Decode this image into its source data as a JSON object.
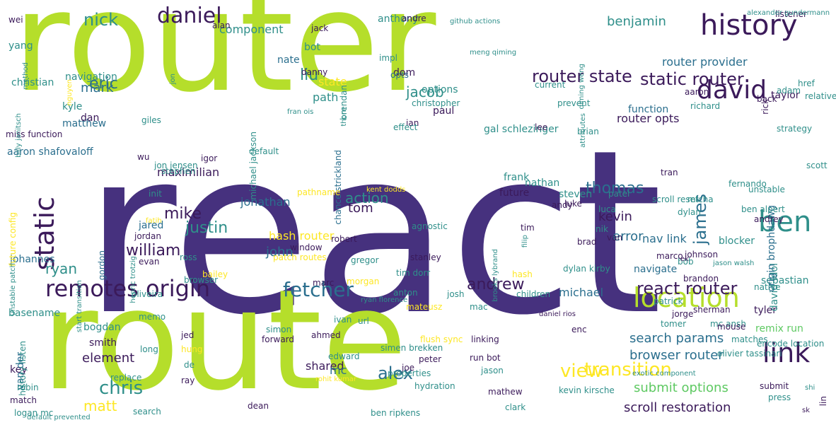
{
  "palette": {
    "dark_purple": "#46317e",
    "deep_purple": "#3b1a5a",
    "teal": "#2f8f8a",
    "blue_teal": "#2b6f8e",
    "green": "#5ec962",
    "lime": "#b5de2b",
    "yellow": "#fde725",
    "muted_purple": "#6b4f8c"
  },
  "words": [
    {
      "text": "router",
      "color": "lime"
    },
    {
      "text": "react",
      "color": "dark_purple"
    },
    {
      "text": "route",
      "color": "lime"
    },
    {
      "text": "history",
      "color": "deep_purple"
    },
    {
      "text": "david",
      "color": "deep_purple"
    },
    {
      "text": "ben",
      "color": "teal"
    },
    {
      "text": "link",
      "color": "deep_purple"
    },
    {
      "text": "location",
      "color": "lime"
    },
    {
      "text": "remotes origin",
      "color": "deep_purple"
    },
    {
      "text": "fetcher",
      "color": "blue_teal"
    },
    {
      "text": "static router",
      "color": "deep_purple"
    },
    {
      "text": "router state",
      "color": "deep_purple"
    },
    {
      "text": "react router",
      "color": "deep_purple"
    },
    {
      "text": "view",
      "color": "yellow"
    },
    {
      "text": "transition",
      "color": "yellow"
    },
    {
      "text": "static",
      "color": "deep_purple"
    },
    {
      "text": "daniel",
      "color": "deep_purple"
    },
    {
      "text": "nick",
      "color": "teal"
    },
    {
      "text": "eric",
      "color": "blue_teal"
    },
    {
      "text": "mark",
      "color": "blue_teal"
    },
    {
      "text": "william",
      "color": "deep_purple"
    },
    {
      "text": "chris",
      "color": "teal"
    },
    {
      "text": "matt",
      "color": "yellow"
    },
    {
      "text": "alex",
      "color": "blue_teal"
    },
    {
      "text": "andrew",
      "color": "deep_purple"
    },
    {
      "text": "mike",
      "color": "deep_purple"
    },
    {
      "text": "justin",
      "color": "teal"
    },
    {
      "text": "thomas",
      "color": "blue_teal"
    },
    {
      "text": "james",
      "color": "blue_teal"
    },
    {
      "text": "kevin",
      "color": "deep_purple"
    },
    {
      "text": "error",
      "color": "blue_teal"
    },
    {
      "text": "jacob",
      "color": "teal"
    },
    {
      "text": "liu",
      "color": "teal"
    },
    {
      "text": "action",
      "color": "teal"
    },
    {
      "text": "tom",
      "color": "deep_purple"
    },
    {
      "text": "ryan",
      "color": "teal"
    },
    {
      "text": "search params",
      "color": "blue_teal"
    },
    {
      "text": "submit options",
      "color": "green"
    },
    {
      "text": "scroll restoration",
      "color": "deep_purple"
    },
    {
      "text": "browser router",
      "color": "blue_teal"
    },
    {
      "text": "nav link",
      "color": "blue_teal"
    },
    {
      "text": "hash router",
      "color": "yellow"
    },
    {
      "text": "michael",
      "color": "blue_teal"
    },
    {
      "text": "element",
      "color": "deep_purple"
    },
    {
      "text": "shared",
      "color": "deep_purple"
    },
    {
      "text": "mc",
      "color": "blue_teal"
    },
    {
      "text": "john",
      "color": "blue_teal"
    },
    {
      "text": "jonathan",
      "color": "blue_teal"
    },
    {
      "text": "maximilian",
      "color": "deep_purple"
    },
    {
      "text": "benjamin",
      "color": "teal"
    },
    {
      "text": "router provider",
      "color": "blue_teal"
    },
    {
      "text": "router opts",
      "color": "deep_purple"
    },
    {
      "text": "function",
      "color": "blue_teal"
    },
    {
      "text": "blocker",
      "color": "teal"
    },
    {
      "text": "navigate",
      "color": "blue_teal"
    },
    {
      "text": "sebastian",
      "color": "teal"
    },
    {
      "text": "tyler",
      "color": "deep_purple"
    },
    {
      "text": "remix run",
      "color": "green"
    },
    {
      "text": "david idol",
      "color": "teal"
    },
    {
      "text": "origin brophdawg",
      "color": "blue_teal"
    },
    {
      "text": "aaron shafovaloff",
      "color": "blue_teal"
    },
    {
      "text": "basename",
      "color": "teal"
    },
    {
      "text": "key",
      "color": "deep_purple"
    },
    {
      "text": "smith",
      "color": "deep_purple"
    },
    {
      "text": "bogdan",
      "color": "teal"
    },
    {
      "text": "van der",
      "color": "blue_teal"
    },
    {
      "text": "johannes",
      "color": "blue_teal"
    },
    {
      "text": "christian",
      "color": "teal"
    },
    {
      "text": "kyle",
      "color": "teal"
    },
    {
      "text": "navigation",
      "color": "teal"
    },
    {
      "text": "matthew",
      "color": "blue_teal"
    },
    {
      "text": "dan",
      "color": "deep_purple"
    },
    {
      "text": "yang",
      "color": "teal"
    },
    {
      "text": "component",
      "color": "teal"
    },
    {
      "text": "state",
      "color": "yellow"
    },
    {
      "text": "path",
      "color": "teal"
    },
    {
      "text": "paul",
      "color": "deep_purple"
    },
    {
      "text": "options",
      "color": "teal"
    },
    {
      "text": "dom",
      "color": "deep_purple"
    },
    {
      "text": "anthony",
      "color": "teal"
    },
    {
      "text": "bot",
      "color": "teal"
    },
    {
      "text": "nate",
      "color": "blue_teal"
    },
    {
      "text": "jared",
      "color": "blue_teal"
    },
    {
      "text": "evan",
      "color": "deep_purple"
    },
    {
      "text": "gordon",
      "color": "blue_teal"
    },
    {
      "text": "michael jackson",
      "color": "teal"
    },
    {
      "text": "chance strickland",
      "color": "blue_teal"
    },
    {
      "text": "gal schlezinger",
      "color": "teal"
    },
    {
      "text": "frank",
      "color": "teal"
    },
    {
      "text": "future",
      "color": "deep_purple"
    },
    {
      "text": "nathan",
      "color": "teal"
    },
    {
      "text": "steven",
      "color": "teal"
    },
    {
      "text": "luke",
      "color": "deep_purple"
    },
    {
      "text": "patel",
      "color": "teal"
    },
    {
      "text": "unstable",
      "color": "teal"
    },
    {
      "text": "andrey",
      "color": "deep_purple"
    },
    {
      "text": "johnson",
      "color": "deep_purple"
    },
    {
      "text": "brandon",
      "color": "deep_purple"
    },
    {
      "text": "bob",
      "color": "teal"
    },
    {
      "text": "native",
      "color": "teal"
    },
    {
      "text": "aaron",
      "color": "deep_purple"
    },
    {
      "text": "richard",
      "color": "teal"
    },
    {
      "text": "taylor",
      "color": "deep_purple"
    },
    {
      "text": "back",
      "color": "deep_purple"
    },
    {
      "text": "adam",
      "color": "teal"
    },
    {
      "text": "relative",
      "color": "teal"
    },
    {
      "text": "scott",
      "color": "teal"
    },
    {
      "text": "href",
      "color": "teal"
    },
    {
      "text": "strategy",
      "color": "teal"
    },
    {
      "text": "rick",
      "color": "deep_purple"
    },
    {
      "text": "lee",
      "color": "deep_purple"
    },
    {
      "text": "prevent",
      "color": "teal"
    },
    {
      "text": "brendan",
      "color": "teal"
    },
    {
      "text": "impl",
      "color": "teal"
    },
    {
      "text": "opts",
      "color": "blue_teal"
    },
    {
      "text": "christopher",
      "color": "teal"
    },
    {
      "text": "current",
      "color": "teal"
    },
    {
      "text": "ian",
      "color": "deep_purple"
    },
    {
      "text": "jon jensen",
      "color": "teal"
    },
    {
      "text": "stephen",
      "color": "teal"
    },
    {
      "text": "giles",
      "color": "teal"
    },
    {
      "text": "danny",
      "color": "deep_purple"
    },
    {
      "text": "effect",
      "color": "teal"
    },
    {
      "text": "brian",
      "color": "teal"
    },
    {
      "text": "wu",
      "color": "deep_purple"
    },
    {
      "text": "igor",
      "color": "deep_purple"
    },
    {
      "text": "default",
      "color": "teal"
    },
    {
      "text": "init",
      "color": "teal"
    },
    {
      "text": "jordan",
      "color": "deep_purple"
    },
    {
      "text": "andy",
      "color": "deep_purple"
    },
    {
      "text": "tran",
      "color": "deep_purple"
    },
    {
      "text": "fernando",
      "color": "teal"
    },
    {
      "text": "ben alpert",
      "color": "teal"
    },
    {
      "text": "scroll reset",
      "color": "teal"
    },
    {
      "text": "micha",
      "color": "teal"
    },
    {
      "text": "dylan",
      "color": "teal"
    },
    {
      "text": "luca",
      "color": "teal"
    },
    {
      "text": "nik",
      "color": "teal"
    },
    {
      "text": "van",
      "color": "deep_purple"
    },
    {
      "text": "tim",
      "color": "deep_purple"
    },
    {
      "text": "brad",
      "color": "deep_purple"
    },
    {
      "text": "marco",
      "color": "deep_purple"
    },
    {
      "text": "agnostic",
      "color": "teal"
    },
    {
      "text": "stanley",
      "color": "deep_purple"
    },
    {
      "text": "robert",
      "color": "deep_purple"
    },
    {
      "text": "window",
      "color": "deep_purple"
    },
    {
      "text": "patch routes",
      "color": "yellow"
    },
    {
      "text": "gregor",
      "color": "teal"
    },
    {
      "text": "marc",
      "color": "deep_purple"
    },
    {
      "text": "tim dorr",
      "color": "teal"
    },
    {
      "text": "morgan",
      "color": "yellow"
    },
    {
      "text": "children",
      "color": "teal"
    },
    {
      "text": "hash",
      "color": "yellow"
    },
    {
      "text": "dylan kirby",
      "color": "teal"
    },
    {
      "text": "oliveira",
      "color": "teal"
    },
    {
      "text": "memo",
      "color": "teal"
    },
    {
      "text": "long",
      "color": "teal"
    },
    {
      "text": "browser",
      "color": "teal"
    },
    {
      "text": "ross",
      "color": "teal"
    },
    {
      "text": "bailey",
      "color": "yellow"
    },
    {
      "text": "jed",
      "color": "deep_purple"
    },
    {
      "text": "hung",
      "color": "yellow"
    },
    {
      "text": "de",
      "color": "teal"
    },
    {
      "text": "ray",
      "color": "deep_purple"
    },
    {
      "text": "ahmed",
      "color": "deep_purple"
    },
    {
      "text": "edward",
      "color": "teal"
    },
    {
      "text": "forward",
      "color": "deep_purple"
    },
    {
      "text": "simon",
      "color": "teal"
    },
    {
      "text": "simen brekken",
      "color": "teal"
    },
    {
      "text": "peter",
      "color": "deep_purple"
    },
    {
      "text": "run bot",
      "color": "deep_purple"
    },
    {
      "text": "jason",
      "color": "teal"
    },
    {
      "text": "joe",
      "color": "deep_purple"
    },
    {
      "text": "hydration",
      "color": "teal"
    },
    {
      "text": "mateusz",
      "color": "yellow"
    },
    {
      "text": "linking",
      "color": "deep_purple"
    },
    {
      "text": "ivan",
      "color": "teal"
    },
    {
      "text": "anton",
      "color": "teal"
    },
    {
      "text": "josh",
      "color": "teal"
    },
    {
      "text": "mac",
      "color": "teal"
    },
    {
      "text": "patrick",
      "color": "teal"
    },
    {
      "text": "jorge",
      "color": "deep_purple"
    },
    {
      "text": "sherman",
      "color": "deep_purple"
    },
    {
      "text": "mc ansh",
      "color": "teal"
    },
    {
      "text": "tomer",
      "color": "teal"
    },
    {
      "text": "encode location",
      "color": "teal"
    },
    {
      "text": "enc",
      "color": "deep_purple"
    },
    {
      "text": "mouse",
      "color": "deep_purple"
    },
    {
      "text": "matches",
      "color": "teal"
    },
    {
      "text": "olivier tassinari",
      "color": "teal"
    },
    {
      "text": "flush sync",
      "color": "yellow"
    },
    {
      "text": "properties",
      "color": "teal"
    },
    {
      "text": "mathew",
      "color": "deep_purple"
    },
    {
      "text": "dean",
      "color": "deep_purple"
    },
    {
      "text": "clark",
      "color": "teal"
    },
    {
      "text": "ben ripkens",
      "color": "teal"
    },
    {
      "text": "kevin kirsche",
      "color": "teal"
    },
    {
      "text": "submit",
      "color": "deep_purple"
    },
    {
      "text": "press",
      "color": "teal"
    },
    {
      "text": "lin",
      "color": "deep_purple"
    },
    {
      "text": "replace",
      "color": "teal"
    },
    {
      "text": "robin",
      "color": "teal"
    },
    {
      "text": "match",
      "color": "deep_purple"
    },
    {
      "text": "logan mc",
      "color": "teal"
    },
    {
      "text": "search",
      "color": "teal"
    },
    {
      "text": "history listen",
      "color": "teal"
    },
    {
      "text": "miss function",
      "color": "deep_purple"
    },
    {
      "text": "future config",
      "color": "yellow"
    },
    {
      "text": "unstable patch",
      "color": "teal"
    },
    {
      "text": "start transition",
      "color": "teal"
    },
    {
      "text": "henric trotzig",
      "color": "teal"
    },
    {
      "text": "fatih",
      "color": "yellow"
    },
    {
      "text": "pathname",
      "color": "yellow"
    },
    {
      "text": "url",
      "color": "teal"
    },
    {
      "text": "kent dodds",
      "color": "yellow"
    },
    {
      "text": "rohit kumar",
      "color": "yellow"
    },
    {
      "text": "brooks lybrand",
      "color": "teal"
    },
    {
      "text": "filip",
      "color": "teal"
    },
    {
      "text": "exotic component",
      "color": "teal"
    },
    {
      "text": "jack",
      "color": "deep_purple"
    },
    {
      "text": "alan",
      "color": "deep_purple"
    },
    {
      "text": "wei",
      "color": "deep_purple"
    },
    {
      "text": "andre",
      "color": "deep_purple"
    },
    {
      "text": "github actions",
      "color": "teal"
    },
    {
      "text": "meng qiming",
      "color": "teal"
    },
    {
      "text": "qiming weng",
      "color": "teal"
    },
    {
      "text": "attributes",
      "color": "teal"
    },
    {
      "text": "listener",
      "color": "deep_purple"
    },
    {
      "text": "alexander gundermann",
      "color": "teal"
    },
    {
      "text": "billy janitsch",
      "color": "teal"
    },
    {
      "text": "method",
      "color": "teal"
    },
    {
      "text": "nguyen",
      "color": "yellow"
    },
    {
      "text": "fran ois",
      "color": "teal"
    },
    {
      "text": "jon",
      "color": "teal"
    },
    {
      "text": "thorn",
      "color": "teal"
    },
    {
      "text": "sk",
      "color": "deep_purple"
    },
    {
      "text": "shi",
      "color": "teal"
    },
    {
      "text": "ek",
      "color": "deep_purple"
    },
    {
      "text": "jason walsh",
      "color": "teal"
    },
    {
      "text": "daniel rios",
      "color": "deep_purple"
    },
    {
      "text": "ryan florence",
      "color": "teal"
    },
    {
      "text": "default prevented",
      "color": "teal"
    },
    {
      "text": "origin markdalgleish",
      "color": "teal"
    }
  ]
}
